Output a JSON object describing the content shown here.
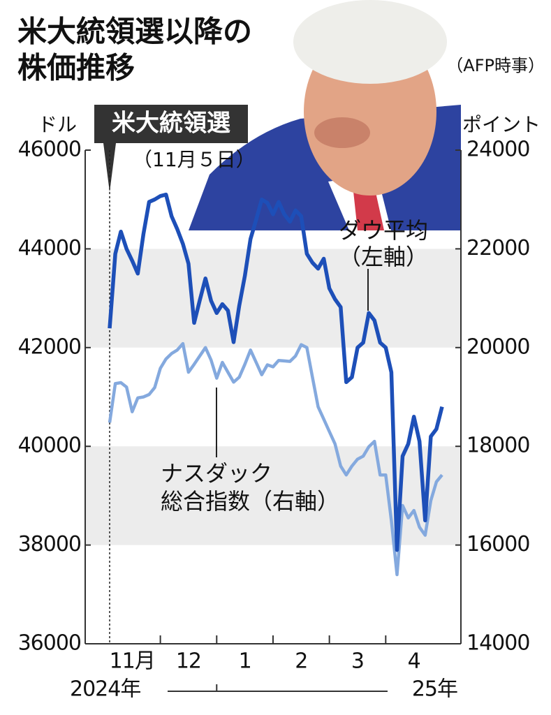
{
  "chart_data": {
    "type": "line",
    "title": [
      "米大統領選以降の",
      "株価推移"
    ],
    "source": "（AFP時事）",
    "y_unit": "ドル",
    "y2_unit": "ポイント",
    "election_label": "米大統領選",
    "election_date": "（11月５日）",
    "year_labels": [
      "2024年",
      "25年"
    ],
    "categories": [
      null,
      null,
      null,
      null,
      "11月",
      null,
      null,
      null,
      null,
      null,
      null,
      null,
      null,
      null,
      "12",
      null,
      null,
      null,
      null,
      null,
      null,
      null,
      null,
      null,
      "1",
      null,
      null,
      null,
      null,
      null,
      null,
      null,
      null,
      null,
      "2",
      null,
      null,
      null,
      null,
      null,
      null,
      null,
      null,
      null,
      "3",
      null,
      null,
      null,
      null,
      null,
      null,
      null,
      null,
      null,
      "4",
      null,
      null,
      null,
      null,
      null
    ],
    "ylim": [
      36000,
      46000
    ],
    "yticks": [
      36000,
      38000,
      40000,
      42000,
      44000,
      46000
    ],
    "y2lim": [
      14000,
      24000
    ],
    "y2ticks": [
      14000,
      16000,
      18000,
      20000,
      22000,
      24000
    ],
    "shaded_bands": [
      [
        42000,
        44000
      ],
      [
        38000,
        40000
      ]
    ],
    "series": [
      {
        "label": [
          "ダウ平均",
          "（左軸）"
        ],
        "color": "#1d4fb8",
        "axis": "y",
        "values": [
          42390,
          43900,
          44350,
          44000,
          43760,
          43500,
          44300,
          44950,
          45000,
          45070,
          45100,
          44660,
          44400,
          44100,
          43700,
          42500,
          42960,
          43400,
          42950,
          42700,
          42880,
          42750,
          42110,
          42850,
          43450,
          44200,
          44590,
          45000,
          44930,
          44700,
          44950,
          44700,
          44550,
          44780,
          44660,
          43900,
          43720,
          43600,
          43800,
          43200,
          42980,
          42820,
          41300,
          41400,
          42000,
          42100,
          42700,
          42550,
          42100,
          42000,
          41500,
          37900,
          39800,
          40050,
          40600,
          40100,
          38500,
          40200,
          40350,
          40800
        ]
      },
      {
        "label": [
          "ナスダック",
          "総合指数（右軸）"
        ],
        "color": "#84a9de",
        "axis": "y2",
        "values": [
          18480,
          19270,
          19290,
          19200,
          18700,
          18980,
          19000,
          19050,
          19190,
          19580,
          19770,
          19880,
          19950,
          20080,
          19500,
          19660,
          19830,
          20000,
          19750,
          19380,
          19700,
          19500,
          19300,
          19400,
          19660,
          19950,
          19700,
          19450,
          19650,
          19610,
          19740,
          19730,
          19720,
          19830,
          20060,
          20000,
          19400,
          18800,
          18550,
          18300,
          18050,
          17600,
          17420,
          17600,
          17740,
          17800,
          17990,
          18100,
          17420,
          17420,
          16500,
          15400,
          16800,
          16550,
          16700,
          16360,
          16200,
          16900,
          17280,
          17420
        ]
      }
    ]
  }
}
